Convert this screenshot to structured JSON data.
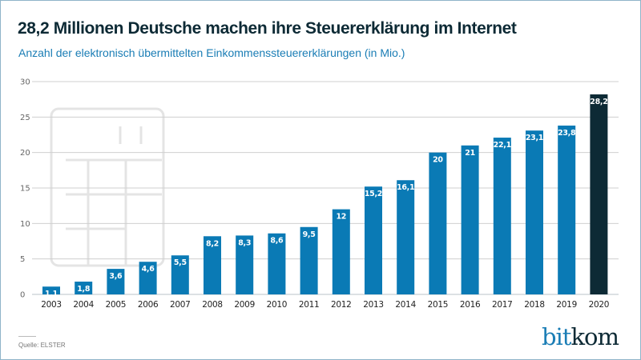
{
  "title": "28,2 Millionen Deutsche machen ihre Steuererklärung im Internet",
  "subtitle": "Anzahl der elektronisch übermittelten Einkommenssteuererklärungen (in Mio.)",
  "source": "Quelle: ELSTER",
  "logo": {
    "part1": "bit",
    "part2": "kom"
  },
  "colors": {
    "bar": "#0a7ab5",
    "highlight_bar": "#0d2a35",
    "grid": "#cfcfcf",
    "watermark": "#e4e4e4"
  },
  "watermark_icon": "calculator-icon",
  "chart_data": {
    "type": "bar",
    "title": "28,2 Millionen Deutsche machen ihre Steuererklärung im Internet",
    "subtitle": "Anzahl der elektronisch übermittelten Einkommenssteuererklärungen (in Mio.)",
    "xlabel": "",
    "ylabel": "",
    "categories": [
      "2003",
      "2004",
      "2005",
      "2006",
      "2007",
      "2008",
      "2009",
      "2010",
      "2011",
      "2012",
      "2013",
      "2014",
      "2015",
      "2016",
      "2017",
      "2018",
      "2019",
      "2020"
    ],
    "values": [
      1.1,
      1.8,
      3.6,
      4.6,
      5.5,
      8.2,
      8.3,
      8.6,
      9.5,
      12,
      15.2,
      16.1,
      20,
      21,
      22.1,
      23.1,
      23.8,
      28.2
    ],
    "data_labels": [
      "1,1",
      "1,8",
      "3,6",
      "4,6",
      "5,5",
      "8,2",
      "8,3",
      "8,6",
      "9,5",
      "12",
      "15,2",
      "16,1",
      "20",
      "21",
      "22,1",
      "23,1",
      "23,8",
      "28,2"
    ],
    "highlight_category": "2020",
    "ylim": [
      0,
      30
    ],
    "yticks": [
      0,
      5,
      10,
      15,
      20,
      25,
      30
    ],
    "ytick_labels": [
      "0",
      "5",
      "10",
      "15",
      "20",
      "25",
      "30"
    ],
    "grid": true,
    "legend": "none"
  }
}
